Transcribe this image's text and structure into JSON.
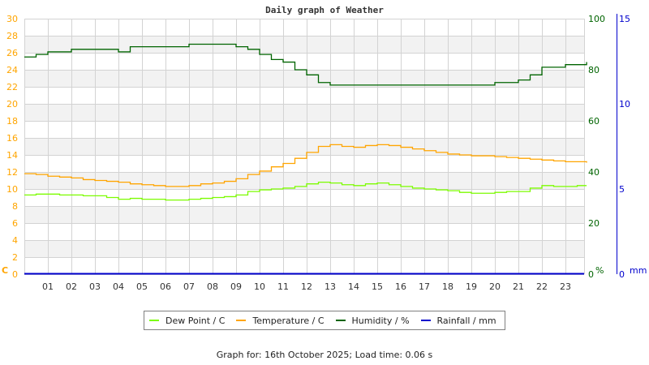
{
  "title": "Daily graph of Weather",
  "footer": "Graph for: 16th October 2025; Load time: 0.06 s",
  "colors": {
    "dew_point": "#7cfc00",
    "temperature": "#ffa500",
    "humidity": "#006400",
    "rainfall": "#0000cd",
    "temp_axis": "#ffa500",
    "humidity_axis": "#006400",
    "rain_axis": "#0000cd",
    "grid": "#d3d3d3",
    "band": "#f2f2f2"
  },
  "legend": [
    {
      "label": "Dew Point / C",
      "color": "#7cfc00"
    },
    {
      "label": "Temperature / C",
      "color": "#ffa500"
    },
    {
      "label": "Humidity / %",
      "color": "#006400"
    },
    {
      "label": "Rainfall / mm",
      "color": "#0000cd"
    }
  ],
  "chart_data": {
    "type": "line",
    "title": "Daily graph of Weather",
    "xlabel": "",
    "x_ticks": [
      "01",
      "02",
      "03",
      "04",
      "05",
      "06",
      "07",
      "08",
      "09",
      "10",
      "11",
      "12",
      "13",
      "14",
      "15",
      "16",
      "17",
      "18",
      "19",
      "20",
      "21",
      "22",
      "23"
    ],
    "axes": {
      "temperature": {
        "label": "C",
        "ticks": [
          0,
          2,
          4,
          6,
          8,
          10,
          12,
          14,
          16,
          18,
          20,
          22,
          24,
          26,
          28,
          30
        ],
        "range": [
          0,
          30
        ]
      },
      "humidity": {
        "label": "%",
        "ticks": [
          0,
          20,
          40,
          60,
          80,
          100
        ],
        "range": [
          0,
          100
        ]
      },
      "rainfall": {
        "label": "mm",
        "ticks": [
          0,
          5,
          10,
          15
        ],
        "range": [
          0,
          15
        ]
      }
    },
    "grid": true,
    "legend_position": "bottom",
    "x": [
      0,
      0.5,
      1,
      1.5,
      2,
      2.5,
      3,
      3.5,
      4,
      4.5,
      5,
      5.5,
      6,
      6.5,
      7,
      7.5,
      8,
      8.5,
      9,
      9.5,
      10,
      10.5,
      11,
      11.5,
      12,
      12.5,
      13,
      13.5,
      14,
      14.5,
      15,
      15.5,
      16,
      16.5,
      17,
      17.5,
      18,
      18.5,
      19,
      19.5,
      20,
      20.5,
      21,
      21.5,
      22,
      22.5,
      23,
      23.5,
      23.9
    ],
    "series": [
      {
        "name": "Dew Point / C",
        "axis": "temperature",
        "values": [
          9.3,
          9.4,
          9.4,
          9.3,
          9.3,
          9.2,
          9.2,
          9.0,
          8.8,
          8.9,
          8.8,
          8.8,
          8.7,
          8.7,
          8.8,
          8.9,
          9.0,
          9.1,
          9.3,
          9.7,
          9.9,
          10.0,
          10.1,
          10.3,
          10.6,
          10.8,
          10.7,
          10.5,
          10.4,
          10.6,
          10.7,
          10.5,
          10.3,
          10.1,
          10.0,
          9.9,
          9.8,
          9.6,
          9.5,
          9.5,
          9.6,
          9.7,
          9.7,
          10.1,
          10.4,
          10.3,
          10.3,
          10.4,
          10.4
        ]
      },
      {
        "name": "Temperature / C",
        "axis": "temperature",
        "values": [
          11.8,
          11.7,
          11.5,
          11.4,
          11.3,
          11.1,
          11.0,
          10.9,
          10.8,
          10.6,
          10.5,
          10.4,
          10.3,
          10.3,
          10.4,
          10.6,
          10.7,
          10.9,
          11.2,
          11.7,
          12.1,
          12.6,
          13.0,
          13.6,
          14.3,
          15.0,
          15.2,
          15.0,
          14.9,
          15.1,
          15.2,
          15.1,
          14.9,
          14.7,
          14.5,
          14.3,
          14.1,
          14.0,
          13.9,
          13.9,
          13.8,
          13.7,
          13.6,
          13.5,
          13.4,
          13.3,
          13.2,
          13.2,
          13.1
        ]
      },
      {
        "name": "Humidity / %",
        "axis": "humidity",
        "values": [
          85,
          86,
          87,
          87,
          88,
          88,
          88,
          88,
          87,
          89,
          89,
          89,
          89,
          89,
          90,
          90,
          90,
          90,
          89,
          88,
          86,
          84,
          83,
          80,
          78,
          75,
          74,
          74,
          74,
          74,
          74,
          74,
          74,
          74,
          74,
          74,
          74,
          74,
          74,
          74,
          75,
          75,
          76,
          78,
          81,
          81,
          82,
          82,
          83
        ]
      },
      {
        "name": "Rainfall / mm",
        "axis": "rainfall",
        "values": [
          0,
          0,
          0,
          0,
          0,
          0,
          0,
          0,
          0,
          0,
          0,
          0,
          0,
          0,
          0,
          0,
          0,
          0,
          0,
          0,
          0,
          0,
          0,
          0,
          0,
          0,
          0,
          0,
          0,
          0,
          0,
          0,
          0,
          0,
          0,
          0,
          0,
          0,
          0,
          0,
          0,
          0,
          0,
          0,
          0,
          0,
          0,
          0,
          0
        ]
      }
    ]
  }
}
